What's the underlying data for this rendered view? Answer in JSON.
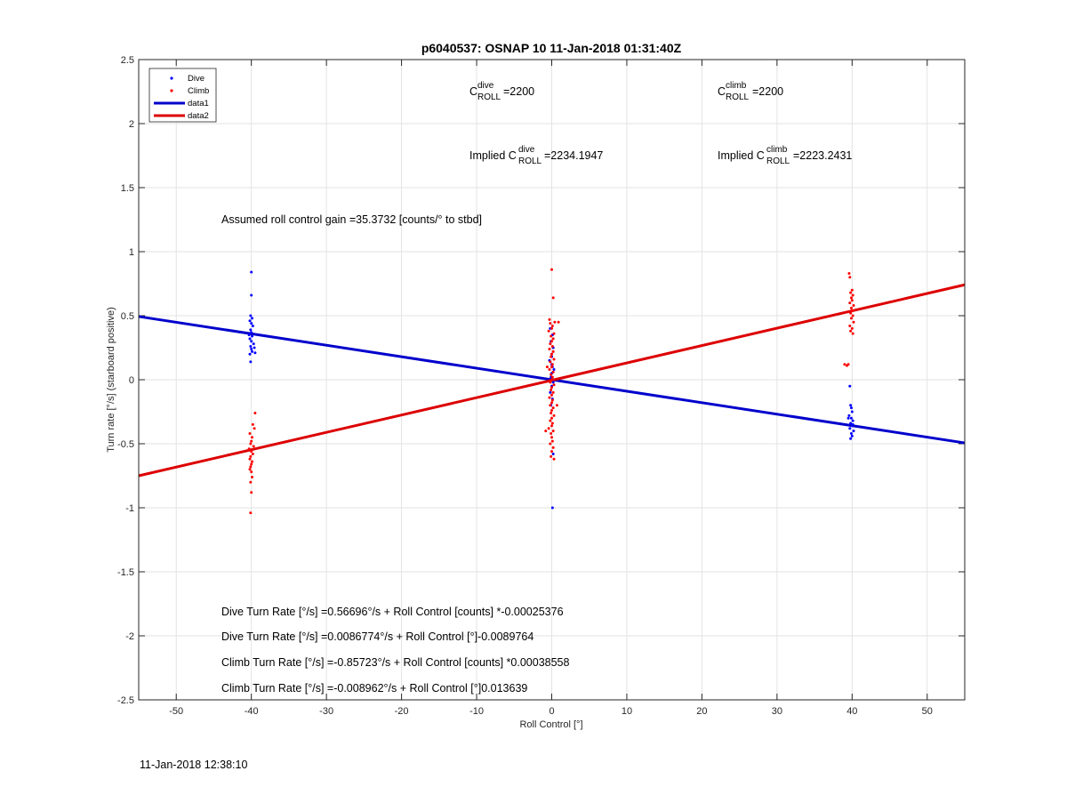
{
  "chart_data": {
    "type": "scatter",
    "title": "p6040537: OSNAP 10 11-Jan-2018 01:31:40Z",
    "xlabel": "Roll Control [°]",
    "ylabel": "Turn rate [°/s] (starboard positive)",
    "xlim": [
      -55,
      55
    ],
    "ylim": [
      -2.5,
      2.5
    ],
    "xticks": [
      -50,
      -40,
      -30,
      -20,
      -10,
      0,
      10,
      20,
      30,
      40,
      50
    ],
    "yticks": [
      -2.5,
      -2,
      -1.5,
      -1,
      -0.5,
      0,
      0.5,
      1,
      1.5,
      2,
      2.5
    ],
    "xtick_labels": [
      "-50",
      "-40",
      "-30",
      "-20",
      "-10",
      "0",
      "10",
      "20",
      "30",
      "40",
      "50"
    ],
    "ytick_labels": [
      "-2.5",
      "-2",
      "-1.5",
      "-1",
      "-0.5",
      "0",
      "0.5",
      "1",
      "1.5",
      "2",
      "2.5"
    ],
    "grid": true,
    "legend_position": "top-left",
    "colors": {
      "dive": "#0000ff",
      "climb": "#ff0000",
      "data1": "#0000cc",
      "data2": "#dd0000"
    },
    "series": [
      {
        "name": "Dive",
        "kind": "scatter",
        "points": [
          [
            -40.0,
            0.84
          ],
          [
            -40.0,
            0.66
          ],
          [
            -40.1,
            0.5
          ],
          [
            -39.9,
            0.48
          ],
          [
            -40.2,
            0.46
          ],
          [
            -40.0,
            0.44
          ],
          [
            -39.8,
            0.42
          ],
          [
            -40.1,
            0.39
          ],
          [
            -40.0,
            0.37
          ],
          [
            -39.9,
            0.34
          ],
          [
            -40.2,
            0.32
          ],
          [
            -40.0,
            0.3
          ],
          [
            -39.7,
            0.28
          ],
          [
            -40.1,
            0.26
          ],
          [
            -40.0,
            0.24
          ],
          [
            -39.9,
            0.22
          ],
          [
            -39.5,
            0.21
          ],
          [
            -40.2,
            0.2
          ],
          [
            -40.1,
            0.14
          ],
          [
            -39.6,
            0.25
          ],
          [
            -40.3,
            0.35
          ],
          [
            -0.2,
            0.4
          ],
          [
            0.1,
            0.35
          ],
          [
            -0.1,
            0.3
          ],
          [
            0.2,
            0.25
          ],
          [
            0.0,
            0.2
          ],
          [
            -0.3,
            0.15
          ],
          [
            0.1,
            0.1
          ],
          [
            0.0,
            0.05
          ],
          [
            -0.1,
            0.02
          ],
          [
            0.2,
            -0.02
          ],
          [
            0.0,
            -0.05
          ],
          [
            -0.2,
            -0.1
          ],
          [
            0.1,
            -0.15
          ],
          [
            0.0,
            0.12
          ],
          [
            0.3,
            0.08
          ],
          [
            -0.1,
            -0.2
          ],
          [
            0.0,
            0.18
          ],
          [
            0.1,
            -1.0
          ],
          [
            0.2,
            -0.58
          ],
          [
            39.7,
            -0.05
          ],
          [
            39.8,
            -0.2
          ],
          [
            39.9,
            -0.22
          ],
          [
            40.0,
            -0.25
          ],
          [
            39.6,
            -0.28
          ],
          [
            39.9,
            -0.3
          ],
          [
            40.1,
            -0.32
          ],
          [
            39.8,
            -0.34
          ],
          [
            40.0,
            -0.36
          ],
          [
            39.7,
            -0.38
          ],
          [
            40.2,
            -0.4
          ],
          [
            39.9,
            -0.42
          ],
          [
            40.0,
            -0.44
          ],
          [
            39.8,
            -0.46
          ],
          [
            40.1,
            -0.35
          ],
          [
            39.5,
            -0.3
          ]
        ]
      },
      {
        "name": "Climb",
        "kind": "scatter",
        "points": [
          [
            -39.5,
            -0.26
          ],
          [
            -39.8,
            -0.35
          ],
          [
            -40.2,
            -0.42
          ],
          [
            -39.9,
            -0.45
          ],
          [
            -40.0,
            -0.48
          ],
          [
            -40.1,
            -0.5
          ],
          [
            -39.7,
            -0.52
          ],
          [
            -40.3,
            -0.54
          ],
          [
            -40.0,
            -0.56
          ],
          [
            -39.8,
            -0.58
          ],
          [
            -40.1,
            -0.6
          ],
          [
            -40.2,
            -0.62
          ],
          [
            -39.9,
            -0.64
          ],
          [
            -40.0,
            -0.66
          ],
          [
            -40.1,
            -0.68
          ],
          [
            -40.2,
            -0.7
          ],
          [
            -40.0,
            -0.72
          ],
          [
            -39.9,
            -0.76
          ],
          [
            -40.1,
            -0.8
          ],
          [
            -40.0,
            -0.88
          ],
          [
            -40.1,
            -1.04
          ],
          [
            -39.6,
            -0.38
          ],
          [
            0.0,
            0.86
          ],
          [
            0.2,
            0.64
          ],
          [
            -0.3,
            0.47
          ],
          [
            0.4,
            0.45
          ],
          [
            -0.2,
            0.44
          ],
          [
            0.1,
            0.42
          ],
          [
            0.0,
            0.4
          ],
          [
            -0.4,
            0.38
          ],
          [
            0.3,
            0.36
          ],
          [
            -0.1,
            0.34
          ],
          [
            0.2,
            0.32
          ],
          [
            0.0,
            0.3
          ],
          [
            -0.2,
            0.28
          ],
          [
            0.1,
            0.26
          ],
          [
            -0.3,
            0.24
          ],
          [
            0.2,
            0.22
          ],
          [
            0.0,
            0.2
          ],
          [
            -0.1,
            0.18
          ],
          [
            0.3,
            0.16
          ],
          [
            -0.2,
            0.14
          ],
          [
            0.1,
            0.12
          ],
          [
            0.0,
            0.1
          ],
          [
            -0.3,
            0.08
          ],
          [
            0.2,
            0.06
          ],
          [
            -0.1,
            0.04
          ],
          [
            0.1,
            0.02
          ],
          [
            0.0,
            0.0
          ],
          [
            -0.2,
            -0.02
          ],
          [
            0.3,
            -0.04
          ],
          [
            0.0,
            -0.06
          ],
          [
            -0.1,
            -0.08
          ],
          [
            0.2,
            -0.1
          ],
          [
            0.0,
            -0.12
          ],
          [
            -0.3,
            -0.14
          ],
          [
            0.1,
            -0.16
          ],
          [
            0.0,
            -0.18
          ],
          [
            -0.2,
            -0.2
          ],
          [
            0.2,
            -0.22
          ],
          [
            0.0,
            -0.24
          ],
          [
            -0.1,
            -0.26
          ],
          [
            0.3,
            -0.28
          ],
          [
            0.0,
            -0.3
          ],
          [
            -0.2,
            -0.32
          ],
          [
            0.1,
            -0.34
          ],
          [
            0.0,
            -0.36
          ],
          [
            -0.4,
            -0.38
          ],
          [
            0.2,
            -0.4
          ],
          [
            -0.1,
            -0.42
          ],
          [
            0.0,
            -0.45
          ],
          [
            0.1,
            -0.48
          ],
          [
            -0.2,
            -0.5
          ],
          [
            0.2,
            -0.53
          ],
          [
            0.0,
            -0.56
          ],
          [
            -0.1,
            -0.6
          ],
          [
            0.3,
            -0.62
          ],
          [
            -0.8,
            -0.4
          ],
          [
            0.9,
            0.45
          ],
          [
            -0.6,
            0.1
          ],
          [
            0.7,
            -0.2
          ],
          [
            39.6,
            0.83
          ],
          [
            39.7,
            0.8
          ],
          [
            40.0,
            0.7
          ],
          [
            39.8,
            0.68
          ],
          [
            40.1,
            0.66
          ],
          [
            39.9,
            0.64
          ],
          [
            40.0,
            0.62
          ],
          [
            39.7,
            0.6
          ],
          [
            40.2,
            0.58
          ],
          [
            39.9,
            0.56
          ],
          [
            40.0,
            0.54
          ],
          [
            39.8,
            0.52
          ],
          [
            40.1,
            0.5
          ],
          [
            39.9,
            0.48
          ],
          [
            40.2,
            0.45
          ],
          [
            39.7,
            0.42
          ],
          [
            40.0,
            0.4
          ],
          [
            39.8,
            0.38
          ],
          [
            40.1,
            0.36
          ],
          [
            39.0,
            0.12
          ],
          [
            39.3,
            0.11
          ],
          [
            39.5,
            0.12
          ]
        ]
      },
      {
        "name": "data1",
        "kind": "line",
        "x": [
          -55,
          55
        ],
        "y": [
          0.4935,
          -0.4935
        ]
      },
      {
        "name": "data2",
        "kind": "line",
        "x": [
          -55,
          55
        ],
        "y": [
          -0.75,
          0.7412
        ]
      }
    ],
    "annotations": {
      "c_dive": {
        "main": "C",
        "sup": "dive",
        "sub": "ROLL",
        "value": "=2200"
      },
      "c_climb": {
        "main": "C",
        "sup": "climb",
        "sub": "ROLL",
        "value": "=2200"
      },
      "implied_dive": {
        "prefix": "Implied C",
        "sup": "dive",
        "sub": "ROLL",
        "value": "=2234.1947"
      },
      "implied_climb": {
        "prefix": "Implied C",
        "sup": "climb",
        "sub": "ROLL",
        "value": "=2223.2431"
      },
      "gain": "Assumed roll control gain =35.3732 [counts/° to stbd]",
      "eq1": "Dive Turn Rate [°/s] =0.56696°/s + Roll Control [counts] *-0.00025376",
      "eq2": "Dive Turn Rate [°/s] =0.0086774°/s + Roll Control [°]-0.0089764",
      "eq3": "Climb Turn Rate [°/s] =-0.85723°/s + Roll Control [counts] *0.00038558",
      "eq4": "Climb Turn Rate [°/s] =-0.008962°/s + Roll Control [°]0.013639"
    }
  },
  "footer": {
    "timestamp": "11-Jan-2018 12:38:10"
  }
}
